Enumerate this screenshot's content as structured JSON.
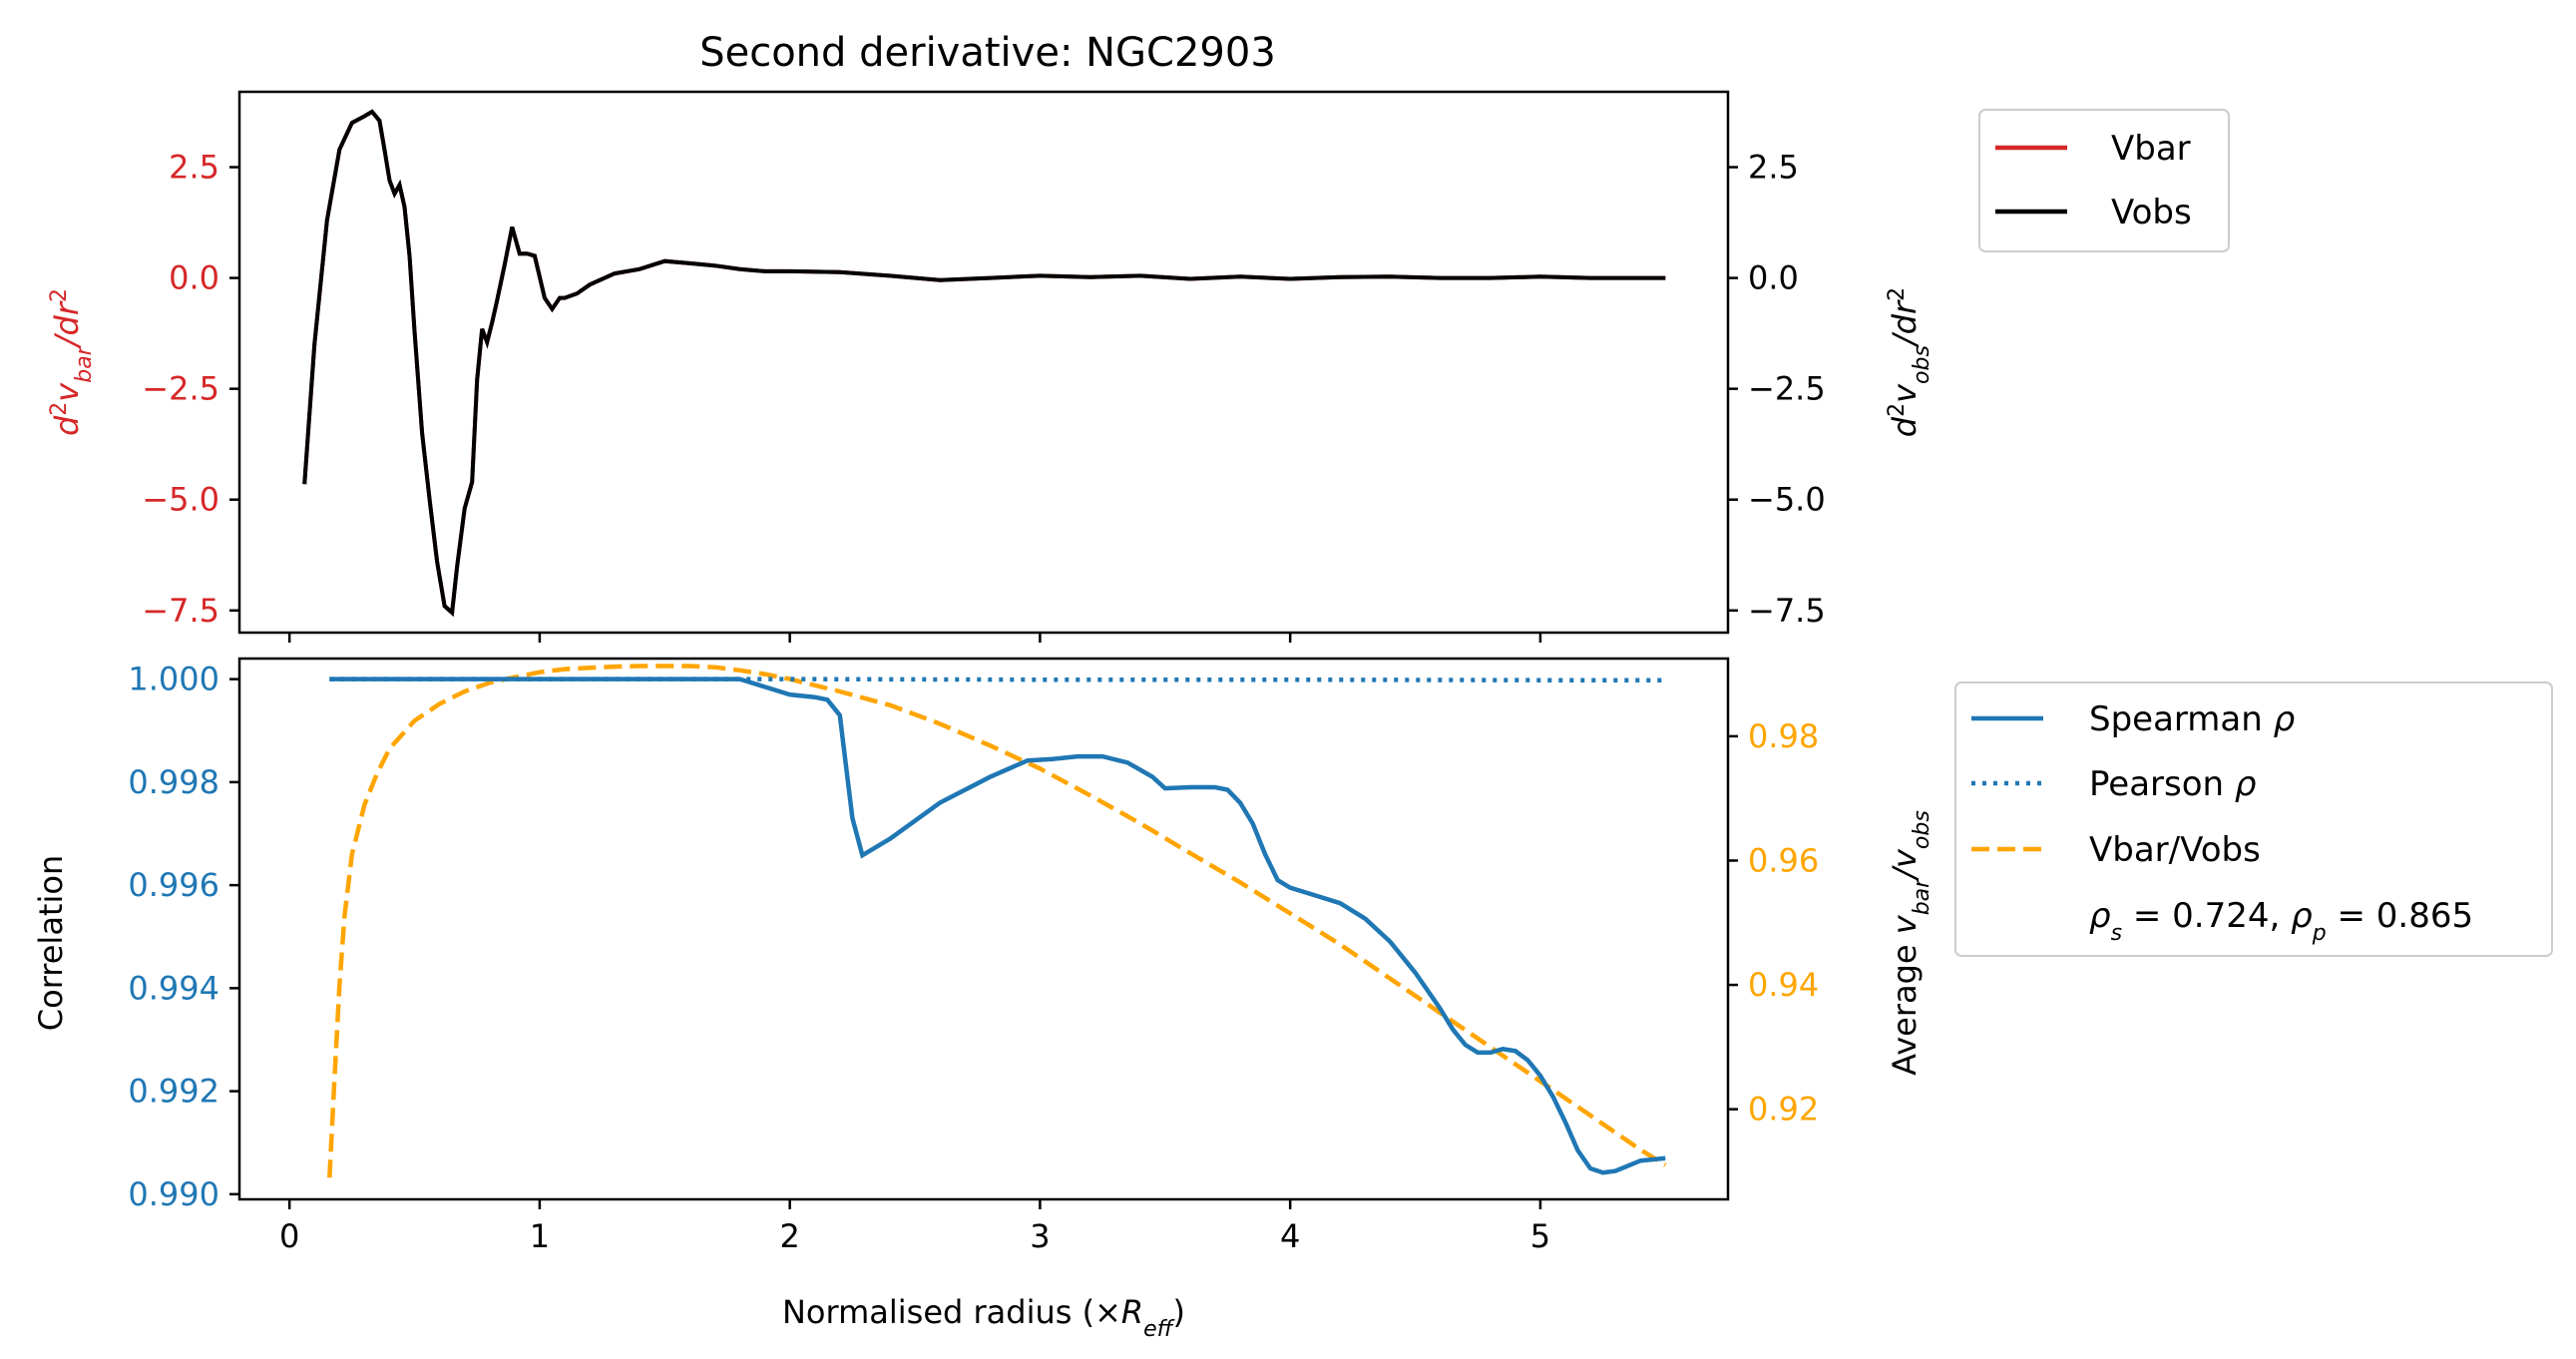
{
  "chart_data": [
    {
      "type": "line",
      "title": "Second derivative: NGC2903",
      "xlabel": "",
      "ylabel_left": "d²v_bar/dr²",
      "ylabel_right": "d²v_obs/dr²",
      "xlim": [
        -0.2,
        5.75
      ],
      "ylim": [
        -8.0,
        4.2
      ],
      "left_ticks": [
        "2.5",
        "0.0",
        "−2.5",
        "−5.0",
        "−7.5"
      ],
      "right_ticks": [
        "2.5",
        "0.0",
        "−2.5",
        "−5.0",
        "−7.5"
      ],
      "tick_values": [
        2.5,
        0.0,
        -2.5,
        -5.0,
        -7.5
      ],
      "colors": {
        "vbar": "#d62728",
        "vobs": "#000000",
        "left_axis": "#d62728"
      },
      "legend": {
        "placement": "outside-right-top",
        "entries": [
          "Vbar",
          "Vobs"
        ]
      },
      "series": [
        {
          "name": "Vbar",
          "x": [
            0.06,
            0.1,
            0.15,
            0.2,
            0.25,
            0.3,
            0.33,
            0.36,
            0.38,
            0.4,
            0.42,
            0.44,
            0.46,
            0.48,
            0.5,
            0.53,
            0.56,
            0.59,
            0.62,
            0.65,
            0.67,
            0.7,
            0.73,
            0.75,
            0.77,
            0.79,
            0.81,
            0.83,
            0.86,
            0.89,
            0.92,
            0.95,
            0.98,
            1.02,
            1.05,
            1.08,
            1.1,
            1.15,
            1.2,
            1.3,
            1.4,
            1.5,
            1.6,
            1.7,
            1.8,
            1.9,
            2.0,
            2.2,
            2.4,
            2.6,
            2.8,
            3.0,
            3.2,
            3.4,
            3.6,
            3.8,
            4.0,
            4.2,
            4.4,
            4.6,
            4.8,
            5.0,
            5.2,
            5.4,
            5.5
          ],
          "y": [
            -4.65,
            -1.5,
            1.3,
            2.9,
            3.5,
            3.65,
            3.75,
            3.55,
            2.9,
            2.2,
            1.9,
            2.1,
            1.6,
            0.5,
            -1.2,
            -3.5,
            -5.0,
            -6.4,
            -7.4,
            -7.55,
            -6.5,
            -5.2,
            -4.6,
            -2.3,
            -1.15,
            -1.45,
            -1.0,
            -0.5,
            0.3,
            1.15,
            0.55,
            0.55,
            0.5,
            -0.45,
            -0.7,
            -0.45,
            -0.45,
            -0.35,
            -0.15,
            0.1,
            0.2,
            0.38,
            0.33,
            0.28,
            0.2,
            0.15,
            0.15,
            0.13,
            0.05,
            -0.05,
            0.0,
            0.05,
            0.02,
            0.05,
            -0.02,
            0.03,
            -0.02,
            0.02,
            0.03,
            0.0,
            0.0,
            0.03,
            0.0,
            0.0,
            0.0
          ]
        },
        {
          "name": "Vobs",
          "x": [
            0.06,
            0.1,
            0.15,
            0.2,
            0.25,
            0.3,
            0.33,
            0.36,
            0.38,
            0.4,
            0.42,
            0.44,
            0.46,
            0.48,
            0.5,
            0.53,
            0.56,
            0.59,
            0.62,
            0.65,
            0.67,
            0.7,
            0.73,
            0.75,
            0.77,
            0.79,
            0.81,
            0.83,
            0.86,
            0.89,
            0.92,
            0.95,
            0.98,
            1.02,
            1.05,
            1.08,
            1.1,
            1.15,
            1.2,
            1.3,
            1.4,
            1.5,
            1.6,
            1.7,
            1.8,
            1.9,
            2.0,
            2.2,
            2.4,
            2.6,
            2.8,
            3.0,
            3.2,
            3.4,
            3.6,
            3.8,
            4.0,
            4.2,
            4.4,
            4.6,
            4.8,
            5.0,
            5.2,
            5.4,
            5.5
          ],
          "y": [
            -4.65,
            -1.5,
            1.3,
            2.9,
            3.5,
            3.65,
            3.75,
            3.55,
            2.9,
            2.2,
            1.9,
            2.1,
            1.6,
            0.5,
            -1.2,
            -3.5,
            -5.0,
            -6.4,
            -7.4,
            -7.55,
            -6.5,
            -5.2,
            -4.6,
            -2.3,
            -1.15,
            -1.45,
            -1.0,
            -0.5,
            0.3,
            1.15,
            0.55,
            0.55,
            0.5,
            -0.45,
            -0.7,
            -0.45,
            -0.45,
            -0.35,
            -0.15,
            0.1,
            0.2,
            0.38,
            0.33,
            0.28,
            0.2,
            0.15,
            0.15,
            0.13,
            0.05,
            -0.05,
            0.0,
            0.05,
            0.02,
            0.05,
            -0.02,
            0.03,
            -0.02,
            0.02,
            0.03,
            0.0,
            0.0,
            0.03,
            0.0,
            0.0,
            0.0
          ]
        }
      ]
    },
    {
      "type": "line",
      "title": "",
      "xlabel": "Normalised radius (×R_eff)",
      "ylabel_left": "Correlation",
      "ylabel_right": "Average v_bar/v_obs",
      "xlim": [
        -0.2,
        5.75
      ],
      "ylim_left": [
        0.9899,
        1.0004
      ],
      "ylim_right": [
        0.9055,
        0.9925
      ],
      "x_ticks": [
        "0",
        "1",
        "2",
        "3",
        "4",
        "5"
      ],
      "x_tick_values": [
        0,
        1,
        2,
        3,
        4,
        5
      ],
      "left_ticks": [
        "1.000",
        "0.998",
        "0.996",
        "0.994",
        "0.992",
        "0.990"
      ],
      "left_tick_values": [
        1.0,
        0.998,
        0.996,
        0.994,
        0.992,
        0.99
      ],
      "right_ticks": [
        "0.98",
        "0.96",
        "0.94",
        "0.92"
      ],
      "right_tick_values": [
        0.98,
        0.96,
        0.94,
        0.92
      ],
      "colors": {
        "spearman": "#1f77b4",
        "pearson": "#1f77b4",
        "ratio": "#ffa500",
        "left_axis": "#1f77b4",
        "right_axis": "#ffa500"
      },
      "legend": {
        "placement": "outside-right",
        "entries": [
          "Spearman ρ",
          "Pearson ρ",
          "Vbar/Vobs"
        ],
        "annotation": "ρs = 0.724, ρp = 0.865"
      },
      "series": [
        {
          "name": "Spearman ρ",
          "axis": "left",
          "x": [
            0.16,
            0.5,
            1.0,
            1.5,
            1.8,
            1.9,
            2.0,
            2.1,
            2.15,
            2.2,
            2.22,
            2.25,
            2.29,
            2.4,
            2.6,
            2.8,
            2.95,
            3.05,
            3.15,
            3.25,
            3.35,
            3.45,
            3.5,
            3.6,
            3.7,
            3.75,
            3.8,
            3.85,
            3.9,
            3.95,
            4.0,
            4.1,
            4.2,
            4.3,
            4.4,
            4.5,
            4.6,
            4.65,
            4.7,
            4.75,
            4.8,
            4.85,
            4.9,
            4.95,
            5.0,
            5.05,
            5.1,
            5.15,
            5.2,
            5.25,
            5.3,
            5.35,
            5.4,
            5.5
          ],
          "y": [
            1.0,
            1.0,
            1.0,
            1.0,
            1.0,
            0.99985,
            0.9997,
            0.99965,
            0.9996,
            0.9993,
            0.9985,
            0.9973,
            0.99658,
            0.9969,
            0.9976,
            0.9981,
            0.99842,
            0.99845,
            0.9985,
            0.9985,
            0.99838,
            0.9981,
            0.99788,
            0.9979,
            0.9979,
            0.99785,
            0.9976,
            0.9972,
            0.9966,
            0.9961,
            0.99595,
            0.9958,
            0.99565,
            0.99535,
            0.9949,
            0.9943,
            0.9936,
            0.9932,
            0.9929,
            0.99275,
            0.99275,
            0.99282,
            0.99278,
            0.9926,
            0.9923,
            0.9919,
            0.9914,
            0.99085,
            0.9905,
            0.99042,
            0.99045,
            0.99055,
            0.99065,
            0.9907
          ]
        },
        {
          "name": "Pearson ρ",
          "axis": "left",
          "x": [
            0.16,
            1.0,
            2.0,
            3.0,
            4.0,
            5.0,
            5.5
          ],
          "y": [
            1.0,
            1.0,
            1.0,
            0.99999,
            0.99999,
            0.99998,
            0.99998
          ]
        },
        {
          "name": "Vbar/Vobs",
          "axis": "right",
          "x": [
            0.16,
            0.18,
            0.2,
            0.22,
            0.25,
            0.3,
            0.35,
            0.4,
            0.5,
            0.6,
            0.7,
            0.8,
            0.9,
            1.0,
            1.1,
            1.2,
            1.3,
            1.4,
            1.5,
            1.6,
            1.7,
            1.8,
            1.9,
            2.0,
            2.2,
            2.4,
            2.6,
            2.8,
            3.0,
            3.2,
            3.4,
            3.6,
            3.8,
            4.0,
            4.2,
            4.4,
            4.6,
            4.8,
            5.0,
            5.2,
            5.4,
            5.5
          ],
          "y": [
            0.909,
            0.925,
            0.94,
            0.951,
            0.961,
            0.969,
            0.974,
            0.978,
            0.9825,
            0.9852,
            0.9872,
            0.9886,
            0.9895,
            0.9903,
            0.9908,
            0.991,
            0.9912,
            0.9913,
            0.9913,
            0.9913,
            0.9911,
            0.9906,
            0.99,
            0.9892,
            0.9872,
            0.985,
            0.982,
            0.9785,
            0.9748,
            0.9705,
            0.966,
            0.9612,
            0.9565,
            0.9515,
            0.9465,
            0.941,
            0.9355,
            0.93,
            0.9245,
            0.919,
            0.9135,
            0.911
          ]
        }
      ]
    }
  ]
}
